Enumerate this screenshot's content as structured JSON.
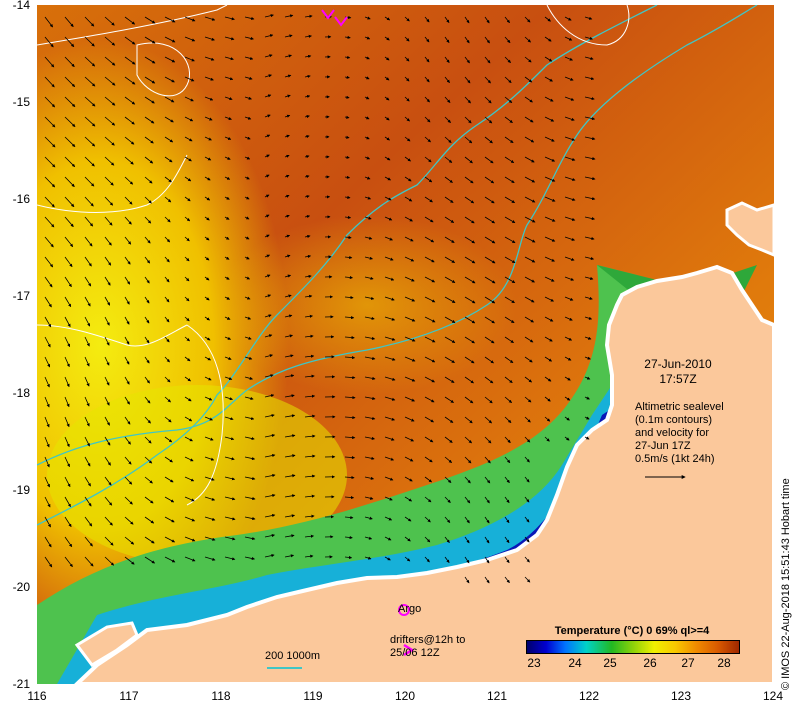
{
  "map": {
    "date_line1": "27-Jun-2010",
    "date_line2": "17:57Z",
    "altimetry_lines": [
      "Altimetric sealevel",
      "(0.1m contours)",
      "and velocity for",
      "27-Jun 17Z",
      "0.5m/s (1kt 24h)"
    ],
    "argo_label": "Argo",
    "drifter_label_line1": "drifters@12h to",
    "drifter_label_line2": "25/06 12Z",
    "bathymetry_label": "200  1000m",
    "credit": "© IMOS 22-Aug-2018 15:51:43 Hobart time",
    "x_axis_labels": [
      "116",
      "117",
      "118",
      "119",
      "120",
      "121",
      "122",
      "123",
      "124"
    ],
    "y_axis_labels": [
      "-14",
      "-15",
      "-16",
      "-17",
      "-18",
      "-19",
      "-20",
      "-21"
    ],
    "lon_range": [
      116,
      124
    ],
    "lat_range": [
      -21,
      -14
    ],
    "colors": {
      "land": "#fbc89b",
      "coast_border": "#ffffff",
      "bathymetry_contour": "#3fc6c6",
      "sealevel_contour": "#ffffff",
      "argo_marker": "#ff00ff",
      "drifter_marker": "#ff00ff"
    },
    "icons": {
      "argo": "magenta-circle-icon",
      "drifter": "magenta-arrow-icon"
    }
  },
  "colorbar": {
    "title": "Temperature (°C) 0 69% ql>=4",
    "ticks": [
      "23",
      "24",
      "25",
      "26",
      "27",
      "28"
    ],
    "range": [
      22.5,
      28.8
    ]
  }
}
